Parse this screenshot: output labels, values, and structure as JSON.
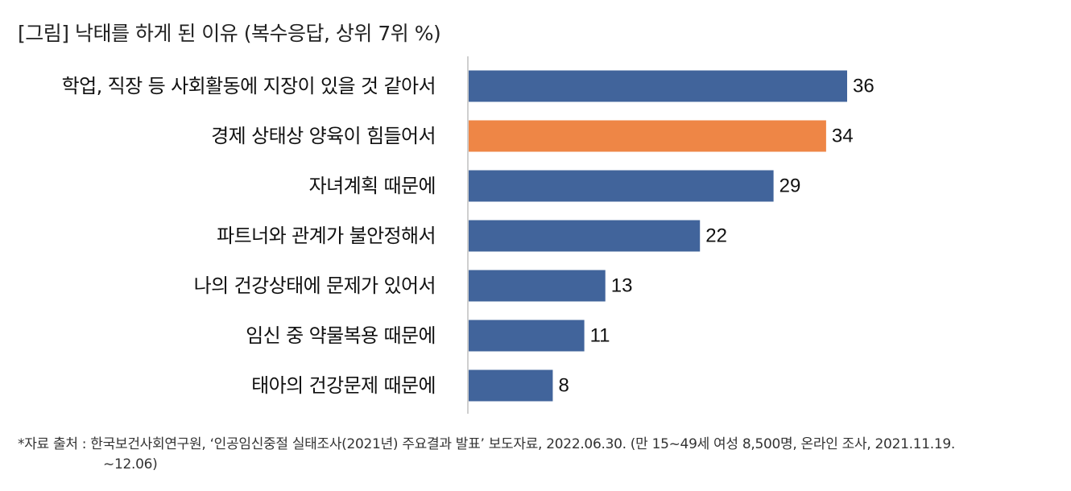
{
  "title": "[그림] 낙태를 하게 된 이유 (복수응답, 상위 7위 %)",
  "chart_data": {
    "type": "bar",
    "orientation": "horizontal",
    "title": "[그림] 낙태를 하게 된 이유 (복수응답, 상위 7위 %)",
    "categories": [
      "학업, 직장 등 사회활동에 지장이 있을 것 같아서",
      "경제 상태상 양육이 힘들어서",
      "자녀계획 때문에",
      "파트너와 관계가 불안정해서",
      "나의 건강상태에 문제가 있어서",
      "임신 중 약물복용 때문에",
      "태아의 건강문제 때문에"
    ],
    "values": [
      36,
      34,
      29,
      22,
      13,
      11,
      8
    ],
    "value_labels": [
      "36",
      "34",
      "29",
      "22",
      "13",
      "11",
      "8"
    ],
    "highlight_index": 1,
    "colors": {
      "default": "#41649b",
      "highlight": "#ee8646",
      "axis": "#bfbfbf"
    },
    "xlim": [
      0,
      36
    ],
    "grid": false,
    "legend": "none"
  },
  "source": {
    "line1": "*자료 출처 : 한국보건사회연구원, ‘인공임신중절 실태조사(2021년) 주요결과 발표’ 보도자료, 2022.06.30. (만 15~49세 여성 8,500명, 온라인 조사, 2021.11.19.",
    "line2": "~12.06)"
  }
}
